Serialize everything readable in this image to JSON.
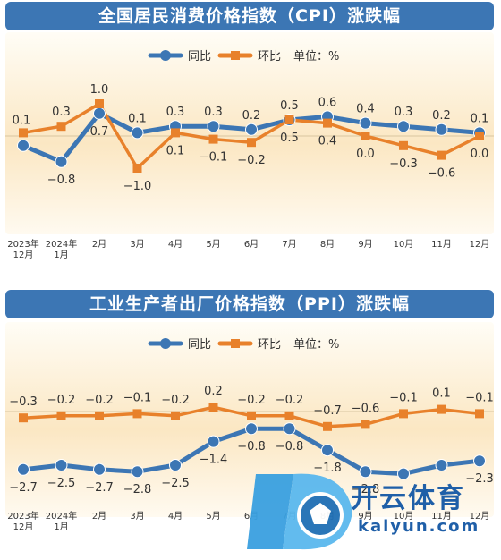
{
  "chart_data": [
    {
      "type": "line",
      "title": "全国居民消费价格指数（CPI）涨跌幅",
      "unit_label": "单位：%",
      "categories": [
        [
          "2023年",
          "12月"
        ],
        [
          "2024年",
          "1月"
        ],
        [
          "2月"
        ],
        [
          "3月"
        ],
        [
          "4月"
        ],
        [
          "5月"
        ],
        [
          "6月"
        ],
        [
          "7月"
        ],
        [
          "8月"
        ],
        [
          "9月"
        ],
        [
          "10月"
        ],
        [
          "11月"
        ],
        [
          "12月"
        ]
      ],
      "series": [
        {
          "name": "同比",
          "color": "#3c76b4",
          "values": [
            -0.3,
            -0.8,
            0.7,
            0.1,
            0.3,
            0.3,
            0.2,
            0.5,
            0.6,
            0.4,
            0.3,
            0.2,
            0.1
          ],
          "labels": [
            "",
            "-0.8",
            "0.7",
            "0.1",
            "0.3",
            "0.3",
            "0.2",
            "0.5",
            "0.6",
            "0.4",
            "0.3",
            "0.2",
            "0.1"
          ]
        },
        {
          "name": "环比",
          "color": "#e8812b",
          "values": [
            0.1,
            0.3,
            1.0,
            -1.0,
            0.1,
            -0.1,
            -0.2,
            0.5,
            0.4,
            0.0,
            -0.3,
            -0.6,
            0.0
          ],
          "labels": [
            "0.1",
            "0.3",
            "1.0",
            "-1.0",
            "0.1",
            "-0.1",
            "-0.2",
            "0.5",
            "0.4",
            "0.0",
            "-0.3",
            "-0.6",
            "0.0"
          ]
        }
      ]
    },
    {
      "type": "line",
      "title": "工业生产者出厂价格指数（PPI）涨跌幅",
      "unit_label": "单位：%",
      "categories": [
        [
          "2023年",
          "12月"
        ],
        [
          "2024年",
          "1月"
        ],
        [
          "2月"
        ],
        [
          "3月"
        ],
        [
          "4月"
        ],
        [
          "5月"
        ],
        [
          "6月"
        ],
        [
          "7月"
        ],
        [
          "8月"
        ],
        [
          "9月"
        ],
        [
          "10月"
        ],
        [
          "11月"
        ],
        [
          "12月"
        ]
      ],
      "series": [
        {
          "name": "同比",
          "color": "#3c76b4",
          "values": [
            -2.7,
            -2.5,
            -2.7,
            -2.8,
            -2.5,
            -1.4,
            -0.8,
            -0.8,
            -1.8,
            -2.8,
            -2.9,
            -2.5,
            -2.3
          ],
          "labels": [
            "-2.7",
            "-2.5",
            "-2.7",
            "-2.8",
            "-2.5",
            "-1.4",
            "-0.8",
            "-0.8",
            "-1.8",
            "-2.8",
            "",
            "",
            "-2.3"
          ]
        },
        {
          "name": "环比",
          "color": "#e8812b",
          "values": [
            -0.3,
            -0.2,
            -0.2,
            -0.1,
            -0.2,
            0.2,
            -0.2,
            -0.2,
            -0.7,
            -0.6,
            -0.1,
            0.1,
            -0.1
          ],
          "labels": [
            "-0.3",
            "-0.2",
            "-0.2",
            "-0.1",
            "-0.2",
            "0.2",
            "-0.2",
            "-0.2",
            "-0.7",
            "-0.6",
            "-0.1",
            "0.1",
            "-0.1"
          ]
        }
      ]
    }
  ],
  "watermark": {
    "brand": "开云体育",
    "domain": "kaiyun.com"
  }
}
